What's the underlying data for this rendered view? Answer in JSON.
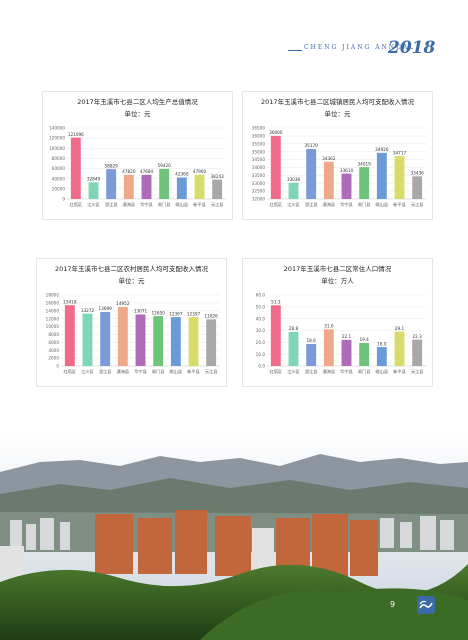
{
  "header": {
    "annual_label": "CHENG  JIANG  ANNUAL",
    "year": "2018"
  },
  "footer": {
    "page": "9"
  },
  "chart_data": [
    {
      "type": "bar",
      "title": "2017年玉溪市七县二区人均生产总值情况",
      "subtitle": "单位：元",
      "categories": [
        "红塔区",
        "江川区",
        "澄江县",
        "通海县",
        "华宁县",
        "易门县",
        "峨山县",
        "新平县",
        "元江县"
      ],
      "values": [
        121096,
        32849,
        58829,
        47820,
        47684,
        59420,
        42360,
        47960,
        38243
      ],
      "value_labels": [
        "121096",
        "32849",
        "58829",
        "47820",
        "47684",
        "59420",
        "42360",
        "47960",
        "38243"
      ],
      "yticks": [
        "0",
        "20000",
        "40000",
        "60000",
        "80000",
        "100000",
        "120000",
        "140000"
      ],
      "ylim": [
        0,
        140000
      ],
      "colors": [
        "#f06a8a",
        "#7ed6b6",
        "#7a9ad8",
        "#f0a88a",
        "#b06aba",
        "#6ec47a",
        "#6a9ad8",
        "#d8dc6a",
        "#a8a8a8"
      ]
    },
    {
      "type": "bar",
      "title": "2017年玉溪市七县二区城镇居民人均可支配收入情况",
      "subtitle": "单位：元",
      "categories": [
        "红塔区",
        "江川区",
        "澄江县",
        "通海县",
        "华宁县",
        "易门县",
        "峨山县",
        "新平县",
        "元江县"
      ],
      "values": [
        36000,
        33036,
        35170,
        34362,
        33610,
        34019,
        34926,
        34717,
        33436
      ],
      "value_labels": [
        "36000",
        "33036",
        "35170",
        "34362",
        "33610",
        "34019",
        "34926",
        "34717",
        "33436"
      ],
      "yticks": [
        "32000",
        "32500",
        "33000",
        "33500",
        "34000",
        "34500",
        "35000",
        "35500",
        "36000",
        "36500"
      ],
      "ylim": [
        32000,
        36500
      ],
      "colors": [
        "#f06a8a",
        "#7ed6b6",
        "#7a9ad8",
        "#f0a88a",
        "#b06aba",
        "#6ec47a",
        "#6a9ad8",
        "#d8dc6a",
        "#a8a8a8"
      ]
    },
    {
      "type": "bar",
      "title": "2017年玉溪市七县二区农村居民人均可支配收入情况",
      "subtitle": "单位：元",
      "categories": [
        "红塔区",
        "江川区",
        "澄江县",
        "通海县",
        "华宁县",
        "易门县",
        "峨山县",
        "新平县",
        "元江县"
      ],
      "values": [
        15418,
        13272,
        13699,
        14952,
        13071,
        12650,
        12397,
        12397,
        11826
      ],
      "value_labels": [
        "15418",
        "13272",
        "13699",
        "14952",
        "13071",
        "12650",
        "12397",
        "12397",
        "11826"
      ],
      "yticks": [
        "0",
        "2000",
        "4000",
        "6000",
        "8000",
        "10000",
        "12000",
        "14000",
        "16000",
        "18000"
      ],
      "ylim": [
        0,
        18000
      ],
      "colors": [
        "#f06a8a",
        "#7ed6b6",
        "#7a9ad8",
        "#f0a88a",
        "#b06aba",
        "#6ec47a",
        "#6a9ad8",
        "#d8dc6a",
        "#a8a8a8"
      ]
    },
    {
      "type": "bar",
      "title": "2017年玉溪市七县二区常住人口情况",
      "subtitle": "单位：万人",
      "categories": [
        "红塔区",
        "江川区",
        "澄江县",
        "通海县",
        "华宁县",
        "易门县",
        "峨山县",
        "新平县",
        "元江县"
      ],
      "values": [
        51.3,
        28.8,
        18.6,
        31.0,
        22.1,
        19.4,
        16.0,
        29.1,
        22.3
      ],
      "value_labels": [
        "51.3",
        "28.8",
        "18.6",
        "31.0",
        "22.1",
        "19.4",
        "16.0",
        "29.1",
        "22.3"
      ],
      "yticks": [
        "0.0",
        "10.0",
        "20.0",
        "30.0",
        "40.0",
        "50.0",
        "60.0"
      ],
      "ylim": [
        0,
        60
      ],
      "colors": [
        "#f06a8a",
        "#7ed6b6",
        "#7a9ad8",
        "#f0a88a",
        "#b06aba",
        "#6ec47a",
        "#6a9ad8",
        "#d8dc6a",
        "#a8a8a8"
      ]
    }
  ]
}
